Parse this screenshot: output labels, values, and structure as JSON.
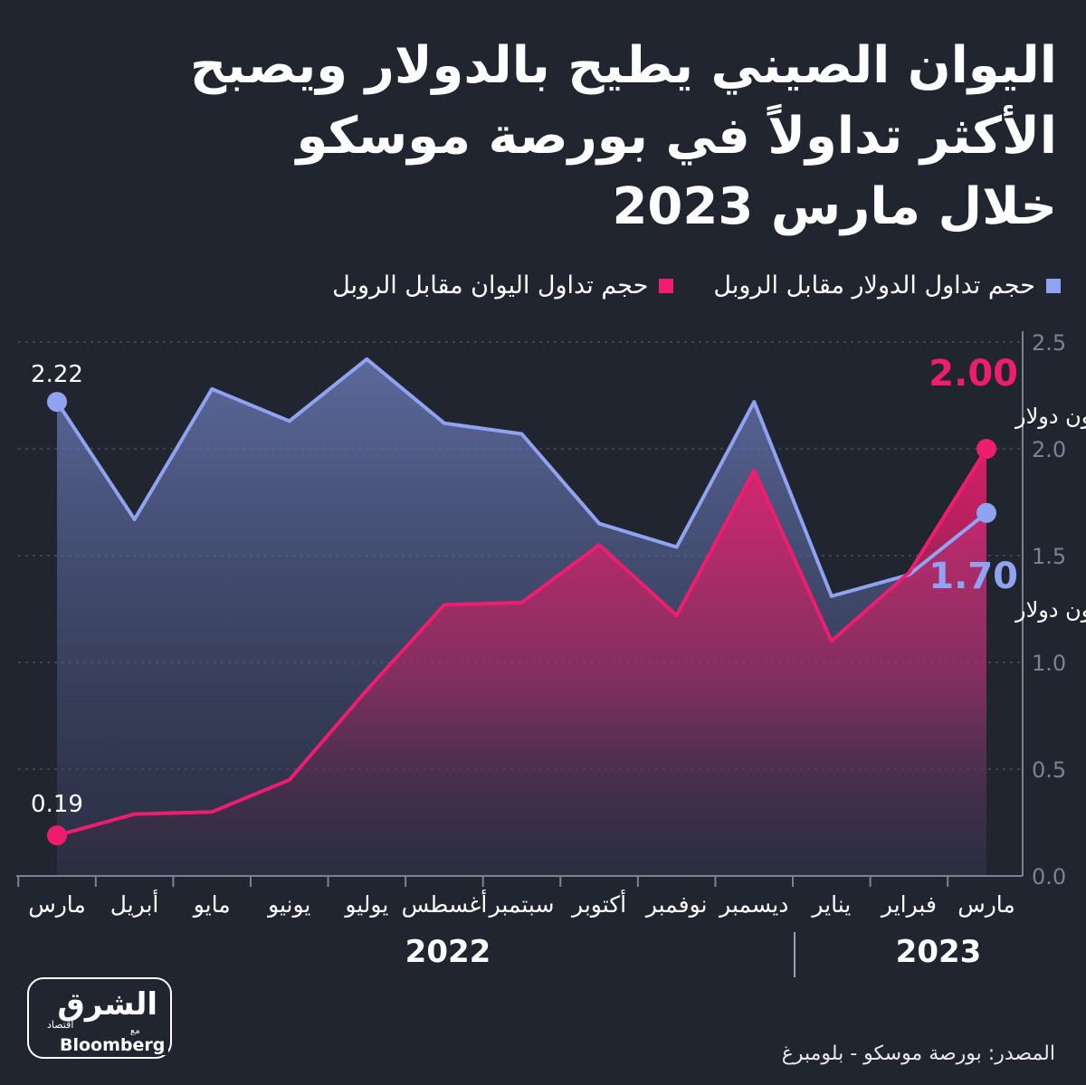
{
  "title": {
    "line1": "اليوان الصيني يطيح بالدولار ويصبح",
    "line2": "الأكثر تداولاً في بورصة موسكو",
    "line3": "خلال مارس 2023"
  },
  "legend": {
    "usd": "حجم تداول الدولار مقابل الروبل",
    "cny": "حجم تداول اليوان مقابل الروبل"
  },
  "colors": {
    "usd": "#8fa3f0",
    "cny": "#ee1d6f",
    "background": "#212530",
    "axis": "#7c8296",
    "grid": "#5a6070"
  },
  "chart_data": {
    "type": "area",
    "categories": [
      "مارس",
      "أبريل",
      "مايو",
      "يونيو",
      "يوليو",
      "أغسطس",
      "سبتمبر",
      "أكتوبر",
      "نوفمبر",
      "ديسمبر",
      "يناير",
      "فبراير",
      "مارس"
    ],
    "series": [
      {
        "name": "حجم تداول الدولار مقابل الروبل",
        "color": "#8fa3f0",
        "values": [
          2.22,
          1.67,
          2.28,
          2.13,
          2.42,
          2.12,
          2.07,
          1.65,
          1.54,
          2.22,
          1.31,
          1.41,
          1.7
        ]
      },
      {
        "name": "حجم تداول اليوان مقابل الروبل",
        "color": "#ee1d6f",
        "values": [
          0.19,
          0.29,
          0.3,
          0.45,
          0.87,
          1.27,
          1.28,
          1.55,
          1.22,
          1.9,
          1.1,
          1.42,
          2.0
        ]
      }
    ],
    "ylim": [
      0,
      2.5
    ],
    "yticks": [
      "0.0",
      "0.5",
      "1.0",
      "1.5",
      "2.0",
      "2.5"
    ],
    "annotations": {
      "usd_start": "2.22",
      "cny_start": "0.19",
      "cny_end_value": "2.00",
      "cny_end_unit": "تريليون دولار",
      "usd_end_value": "1.70",
      "usd_end_unit": "تريليون دولار"
    },
    "years": {
      "y2022": "2022",
      "y2023": "2023"
    }
  },
  "source": "المصدر: بورصة موسكو - بلومبرغ",
  "logo": {
    "arabic": "الشرق",
    "sub": "اقتصاد",
    "with": "مع",
    "english": "Bloomberg"
  }
}
